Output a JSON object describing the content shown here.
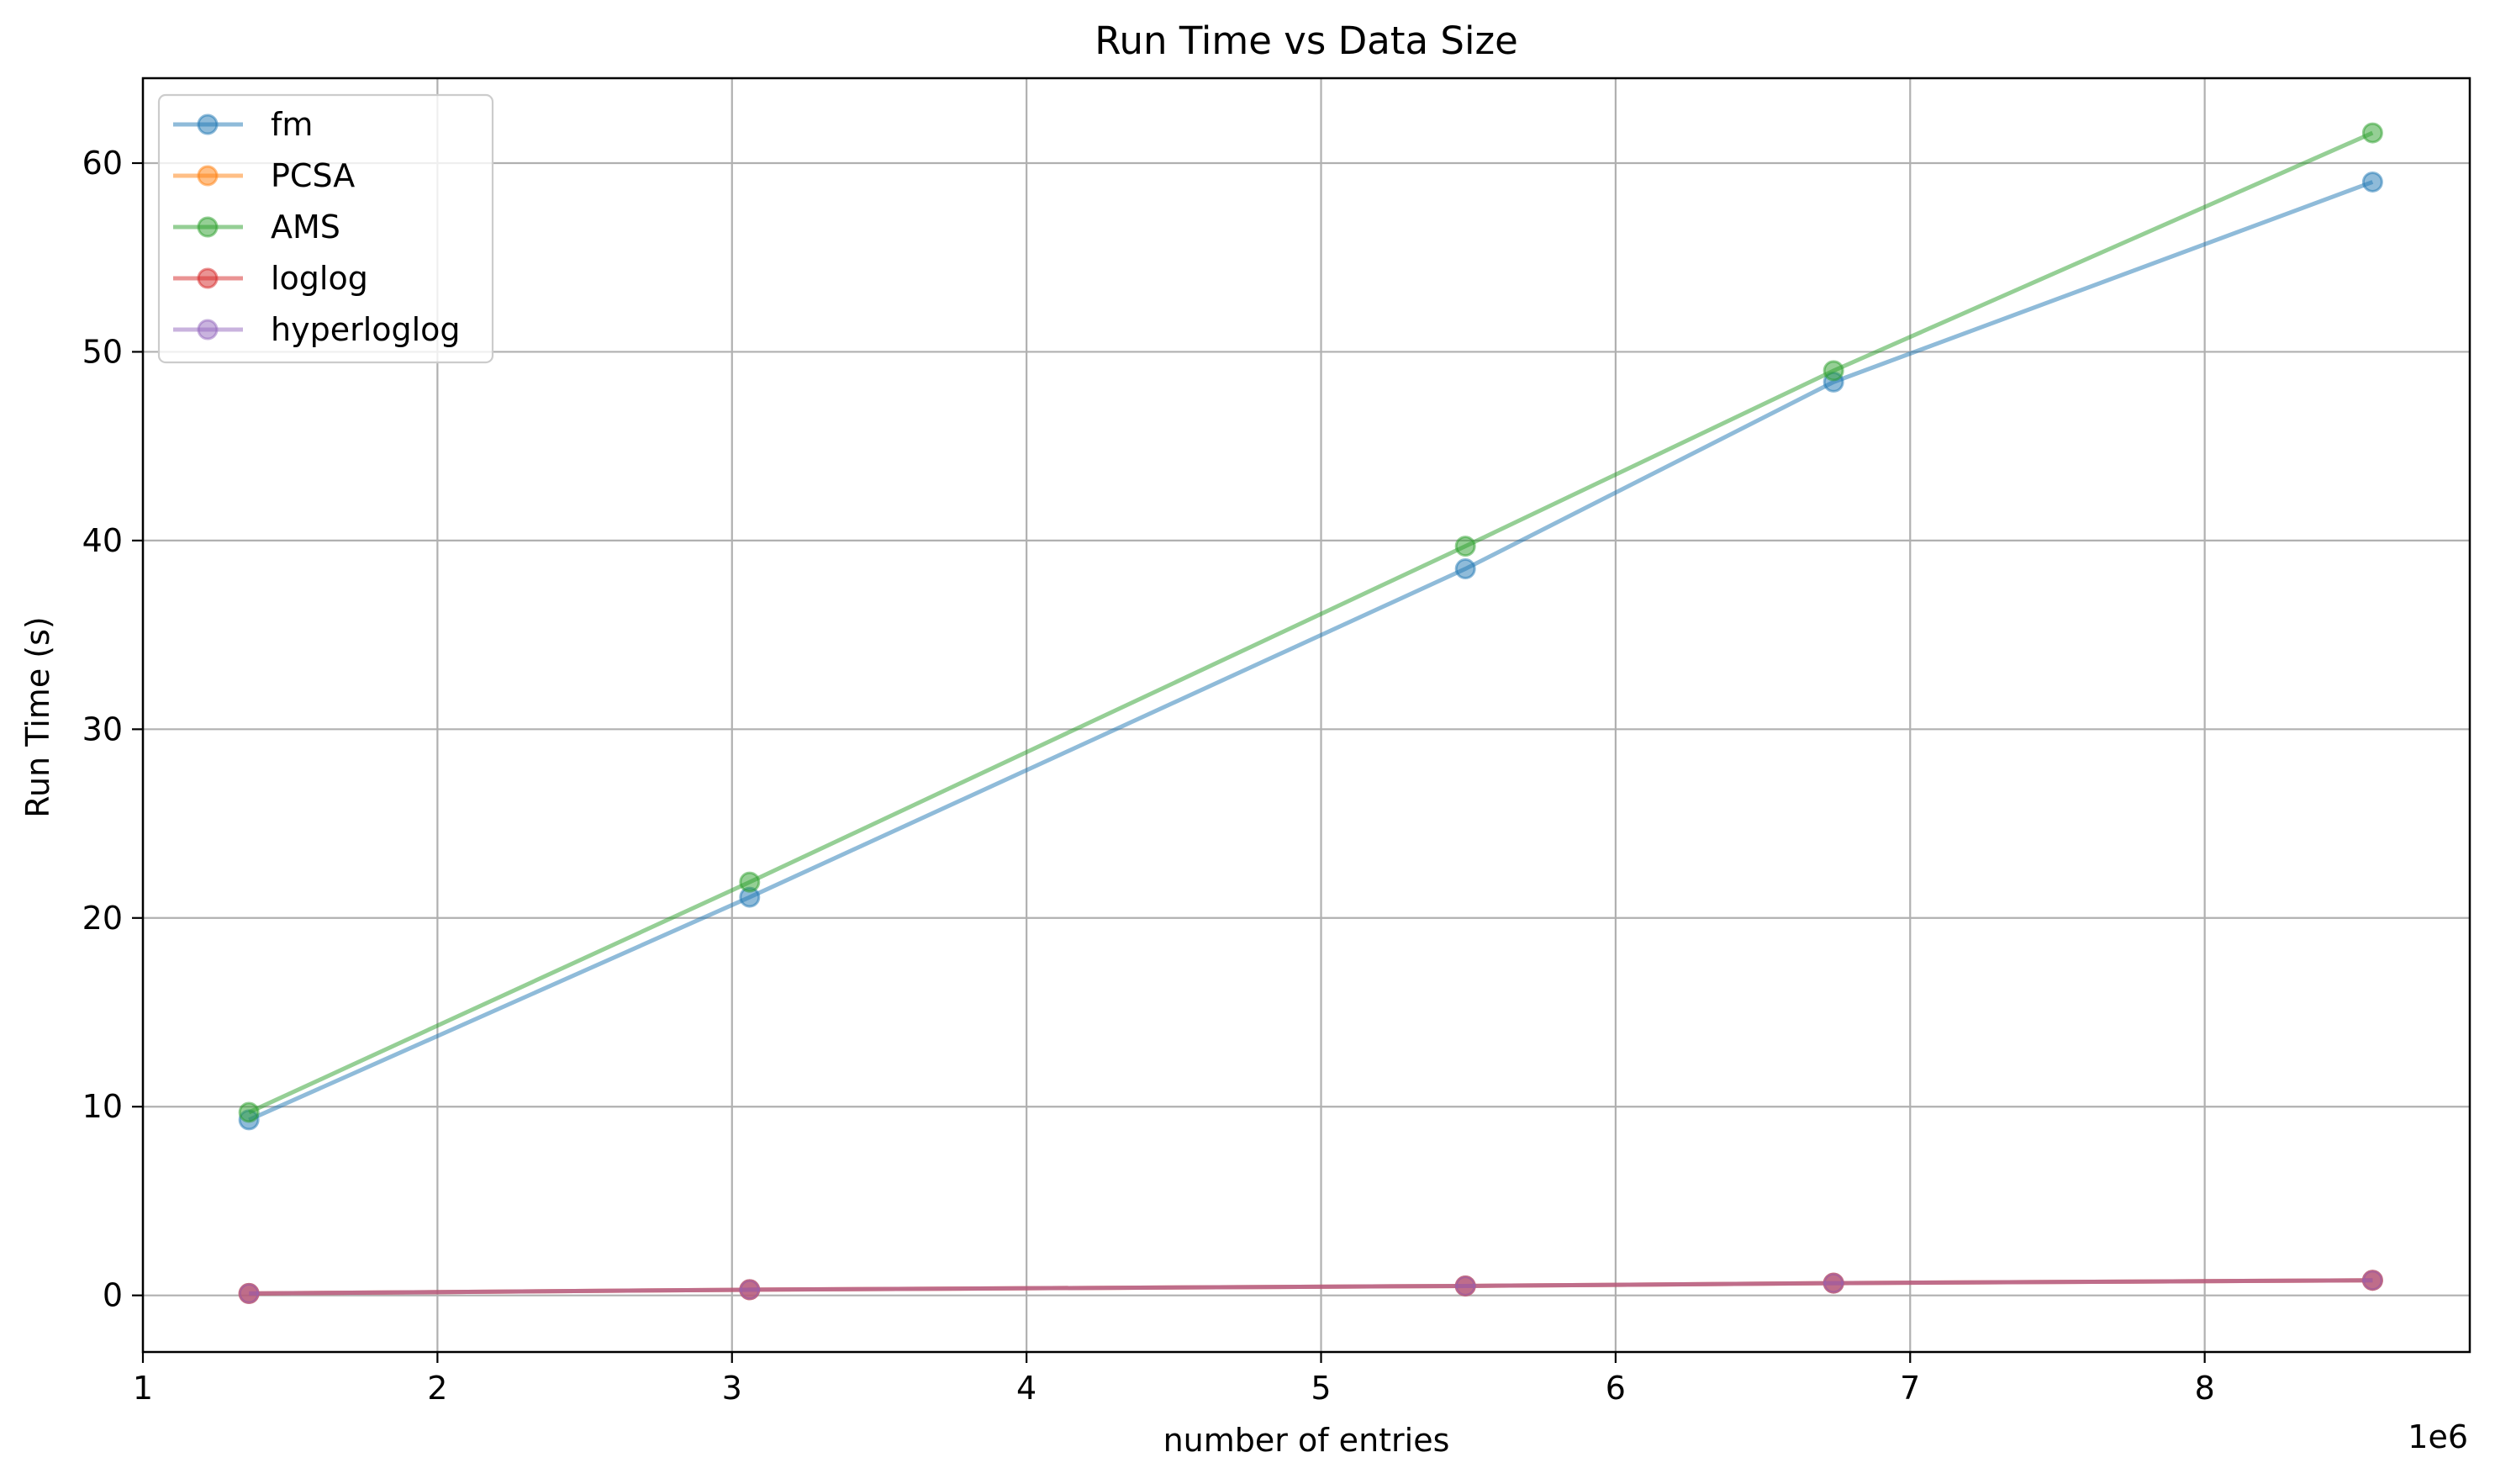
{
  "chart_data": {
    "type": "line",
    "title": "Run Time vs Data Size",
    "xlabel": "number of entries",
    "ylabel": "Run Time (s)",
    "x_offset_label": "1e6",
    "xlim": [
      1000000,
      8900000
    ],
    "ylim": [
      -3,
      64.5
    ],
    "x_ticks": [
      1000000,
      2000000,
      3000000,
      4000000,
      5000000,
      6000000,
      7000000,
      8000000
    ],
    "x_tick_labels": [
      "1",
      "2",
      "3",
      "4",
      "5",
      "6",
      "7",
      "8"
    ],
    "y_ticks": [
      0,
      10,
      20,
      30,
      40,
      50,
      60
    ],
    "y_tick_labels": [
      "0",
      "10",
      "20",
      "30",
      "40",
      "50",
      "60"
    ],
    "grid": true,
    "legend_position": "top-left",
    "x": [
      1360000,
      3060000,
      5490000,
      6740000,
      8570000
    ],
    "series": [
      {
        "name": "fm",
        "color": "#1f77b4",
        "values": [
          9.3,
          21.1,
          38.5,
          48.4,
          59.0
        ]
      },
      {
        "name": "PCSA",
        "color": "#ff7f0e",
        "values": [
          0.1,
          0.3,
          0.5,
          0.65,
          0.8
        ]
      },
      {
        "name": "AMS",
        "color": "#2ca02c",
        "values": [
          9.7,
          21.9,
          39.7,
          49.0,
          61.6
        ]
      },
      {
        "name": "loglog",
        "color": "#d62728",
        "values": [
          0.1,
          0.3,
          0.5,
          0.65,
          0.8
        ]
      },
      {
        "name": "hyperloglog",
        "color": "#9467bd",
        "values": [
          0.1,
          0.3,
          0.5,
          0.65,
          0.8
        ]
      }
    ]
  }
}
